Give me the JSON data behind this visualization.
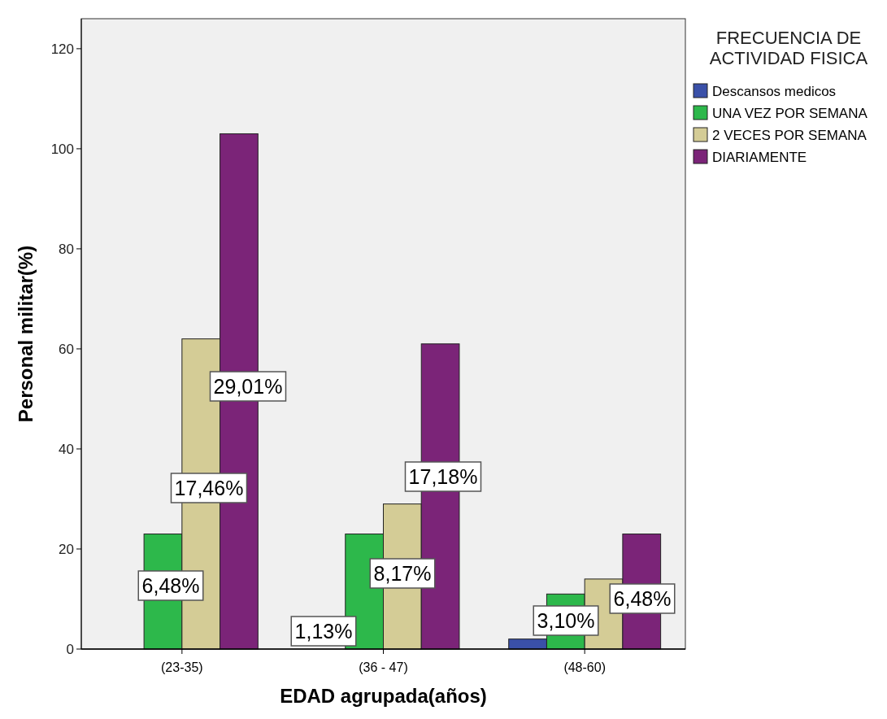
{
  "chart_data": {
    "type": "bar",
    "xlabel": "EDAD agrupada(años)",
    "ylabel": "Personal militar(%)",
    "legend_title": "FRECUENCIA DE ACTIVIDAD FISICA",
    "categories": [
      "(23-35)",
      "(36 - 47)",
      "(48-60)"
    ],
    "series": [
      {
        "name": "Descansos medicos",
        "color": "#3a50a8",
        "values": [
          null,
          0,
          2
        ]
      },
      {
        "name": "UNA VEZ POR SEMANA",
        "color": "#2db84b",
        "values": [
          23,
          23,
          11
        ]
      },
      {
        "name": "2 VECES POR SEMANA",
        "color": "#d4cc96",
        "values": [
          62,
          29,
          14
        ]
      },
      {
        "name": "DIARIAMENTE",
        "color": "#7b2478",
        "values": [
          103,
          61,
          23
        ]
      }
    ],
    "annotations": [
      "6,48%",
      "17,46%",
      "29,01%",
      "1,13%",
      "8,17%",
      "17,18%",
      "3,10%",
      "6,48%"
    ],
    "ylim": [
      0,
      126
    ],
    "yticks": [
      0,
      20,
      40,
      60,
      80,
      100,
      120
    ],
    "grid": false,
    "legend": "top right"
  }
}
